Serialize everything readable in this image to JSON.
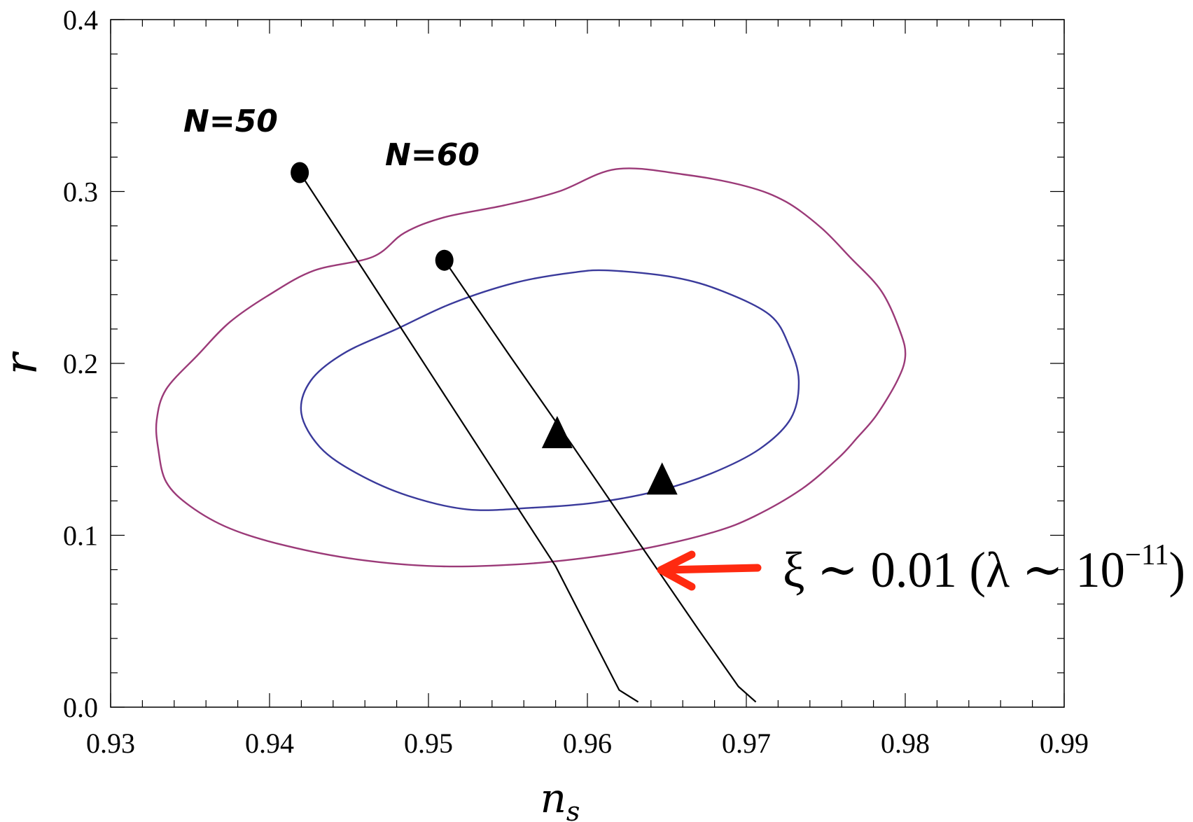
{
  "chart_data": {
    "type": "scatter",
    "title": "",
    "xlabel": "n",
    "xlabel_subscript": "s",
    "ylabel": "r",
    "xlim": [
      0.93,
      0.99
    ],
    "ylim": [
      0.0,
      0.4
    ],
    "x_ticks": [
      "0.93",
      "0.94",
      "0.95",
      "0.96",
      "0.97",
      "0.98",
      "0.99"
    ],
    "y_ticks": [
      "0.0",
      "0.1",
      "0.2",
      "0.3",
      "0.4"
    ],
    "grid": false,
    "colors": {
      "contour_outer": "#9b3a78",
      "contour_inner": "#3a3a9b",
      "trajectory": "#000000",
      "arrow": "#ff2a10"
    },
    "contours": [
      {
        "level": "outer",
        "points": [
          [
            0.9618,
            0.313
          ],
          [
            0.966,
            0.31
          ],
          [
            0.97,
            0.303
          ],
          [
            0.9725,
            0.294
          ],
          [
            0.9747,
            0.279
          ],
          [
            0.9765,
            0.262
          ],
          [
            0.9785,
            0.242
          ],
          [
            0.9797,
            0.218
          ],
          [
            0.98,
            0.204
          ],
          [
            0.9795,
            0.19
          ],
          [
            0.9782,
            0.17
          ],
          [
            0.977,
            0.157
          ],
          [
            0.9758,
            0.145
          ],
          [
            0.9735,
            0.127
          ],
          [
            0.9705,
            0.111
          ],
          [
            0.968,
            0.102
          ],
          [
            0.964,
            0.093
          ],
          [
            0.96,
            0.087
          ],
          [
            0.9555,
            0.083
          ],
          [
            0.9505,
            0.082
          ],
          [
            0.9455,
            0.086
          ],
          [
            0.941,
            0.094
          ],
          [
            0.9375,
            0.104
          ],
          [
            0.935,
            0.117
          ],
          [
            0.9335,
            0.131
          ],
          [
            0.933,
            0.15
          ],
          [
            0.9329,
            0.167
          ],
          [
            0.9335,
            0.185
          ],
          [
            0.9355,
            0.205
          ],
          [
            0.9375,
            0.224
          ],
          [
            0.94,
            0.24
          ],
          [
            0.9428,
            0.254
          ],
          [
            0.9465,
            0.262
          ],
          [
            0.9485,
            0.276
          ],
          [
            0.951,
            0.285
          ],
          [
            0.9548,
            0.292
          ],
          [
            0.9582,
            0.3
          ],
          [
            0.9618,
            0.313
          ]
        ]
      },
      {
        "level": "inner",
        "points": [
          [
            0.9615,
            0.254
          ],
          [
            0.9655,
            0.25
          ],
          [
            0.9685,
            0.242
          ],
          [
            0.9715,
            0.228
          ],
          [
            0.9727,
            0.21
          ],
          [
            0.9733,
            0.19
          ],
          [
            0.9728,
            0.168
          ],
          [
            0.9708,
            0.15
          ],
          [
            0.9678,
            0.136
          ],
          [
            0.9645,
            0.126
          ],
          [
            0.9605,
            0.119
          ],
          [
            0.9565,
            0.116
          ],
          [
            0.9525,
            0.115
          ],
          [
            0.9487,
            0.123
          ],
          [
            0.9455,
            0.136
          ],
          [
            0.9432,
            0.151
          ],
          [
            0.942,
            0.171
          ],
          [
            0.9426,
            0.19
          ],
          [
            0.9447,
            0.206
          ],
          [
            0.948,
            0.22
          ],
          [
            0.9515,
            0.235
          ],
          [
            0.9555,
            0.247
          ],
          [
            0.9592,
            0.253
          ],
          [
            0.9615,
            0.254
          ]
        ]
      }
    ],
    "series": [
      {
        "name": "N=50",
        "start": [
          0.9419,
          0.311
        ],
        "points": [
          [
            0.9419,
            0.311
          ],
          [
            0.946,
            0.253
          ],
          [
            0.95,
            0.196
          ],
          [
            0.954,
            0.139
          ],
          [
            0.958,
            0.082
          ],
          [
            0.9605,
            0.037
          ],
          [
            0.962,
            0.01
          ],
          [
            0.9632,
            0.003
          ]
        ]
      },
      {
        "name": "N=60",
        "start": [
          0.951,
          0.26
        ],
        "points": [
          [
            0.951,
            0.26
          ],
          [
            0.955,
            0.206
          ],
          [
            0.959,
            0.153
          ],
          [
            0.963,
            0.099
          ],
          [
            0.967,
            0.045
          ],
          [
            0.9695,
            0.012
          ],
          [
            0.9706,
            0.003
          ]
        ]
      }
    ],
    "markers": [
      {
        "shape": "triangle",
        "x": 0.9581,
        "y": 0.158
      },
      {
        "shape": "triangle",
        "x": 0.9647,
        "y": 0.131
      }
    ],
    "annotation": {
      "text_prefix": "ξ ∼ 0.01 (λ ∼ 10",
      "superscript": "−11",
      "text_suffix": ")",
      "points_to": [
        0.964,
        0.081
      ]
    }
  }
}
